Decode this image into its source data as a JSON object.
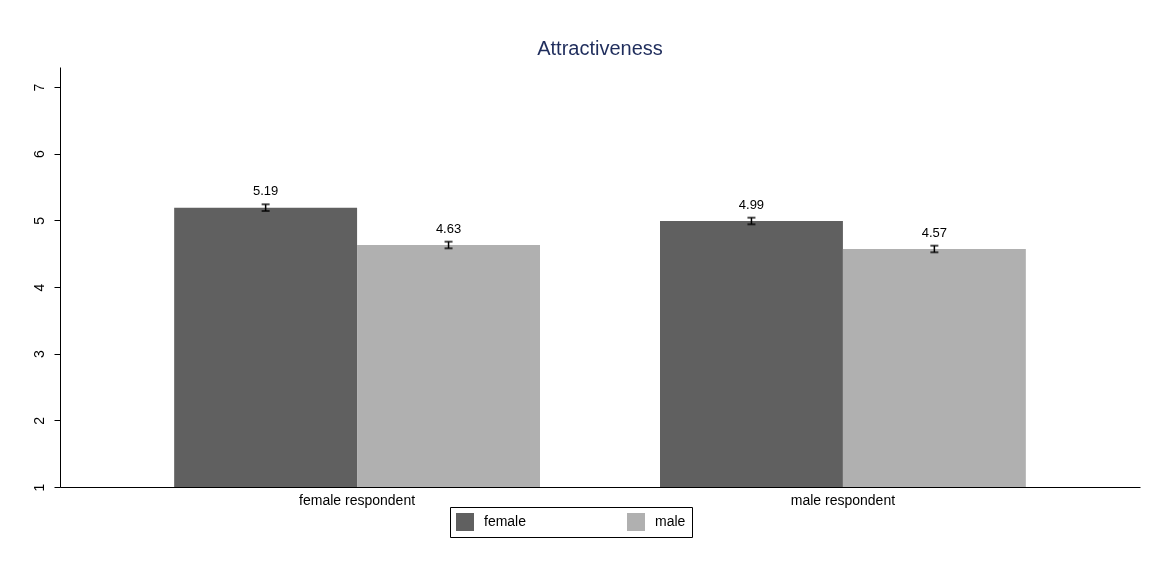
{
  "chart_data": {
    "type": "bar",
    "title": "Attractiveness",
    "categories": [
      "female respondent",
      "male respondent"
    ],
    "series": [
      {
        "name": "female",
        "color": "#606060",
        "values": [
          5.19,
          4.99
        ],
        "errors": [
          0.05,
          0.05
        ]
      },
      {
        "name": "male",
        "color": "#b0b0b0",
        "values": [
          4.63,
          4.57
        ],
        "errors": [
          0.05,
          0.05
        ]
      }
    ],
    "ylim": [
      1,
      7.3
    ],
    "yticks": [
      {
        "value": 1,
        "label": "1"
      },
      {
        "value": 2,
        "label": "2"
      },
      {
        "value": 3,
        "label": "3"
      },
      {
        "value": 4,
        "label": "4"
      },
      {
        "value": 5,
        "label": "5"
      },
      {
        "value": 6,
        "label": "6"
      },
      {
        "value": 7,
        "label": "7"
      }
    ],
    "data_labels": true,
    "grid": false,
    "legend": "bottom"
  }
}
